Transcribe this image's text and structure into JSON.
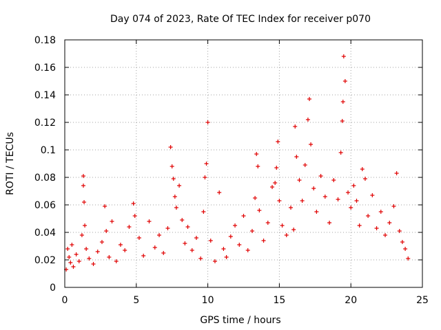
{
  "chart_data": {
    "type": "scatter",
    "title": "Day 074 of 2023, Rate Of TEC Index for receiver p070",
    "xlabel": "GPS time / hours",
    "ylabel": "ROTI / TECUs",
    "xlim": [
      0,
      25
    ],
    "ylim": [
      0,
      0.18
    ],
    "xticks": [
      "0",
      "5",
      "10",
      "15",
      "20",
      "25"
    ],
    "yticks": [
      "0",
      "0.02",
      "0.04",
      "0.06",
      "0.08",
      "0.1",
      "0.12",
      "0.14",
      "0.16",
      "0.18"
    ],
    "grid": true,
    "marker_color": "#e00000",
    "series": [
      {
        "x": [
          0.1,
          0.2,
          0.3,
          0.4,
          0.5,
          0.6,
          0.8,
          1.0,
          1.2,
          1.3,
          1.3,
          1.35,
          1.4,
          1.5,
          1.7,
          2.0,
          2.3,
          2.6,
          2.8,
          2.9,
          3.1,
          3.3,
          3.6,
          3.9,
          4.2,
          4.5,
          4.8,
          4.9,
          5.2,
          5.5,
          5.9,
          6.3,
          6.6,
          6.9,
          7.2,
          7.4,
          7.5,
          7.6,
          7.7,
          7.8,
          8.0,
          8.2,
          8.4,
          8.6,
          8.9,
          9.2,
          9.5,
          9.7,
          9.8,
          9.9,
          10.0,
          10.2,
          10.5,
          10.8,
          11.1,
          11.3,
          11.6,
          11.9,
          12.2,
          12.5,
          12.8,
          13.1,
          13.3,
          13.4,
          13.5,
          13.6,
          13.9,
          14.2,
          14.5,
          14.7,
          14.8,
          14.9,
          15.0,
          15.2,
          15.5,
          15.8,
          16.0,
          16.1,
          16.2,
          16.4,
          16.6,
          16.8,
          17.0,
          17.1,
          17.2,
          17.4,
          17.6,
          17.9,
          18.2,
          18.5,
          18.8,
          19.1,
          19.3,
          19.4,
          19.45,
          19.5,
          19.6,
          19.8,
          20.0,
          20.2,
          20.4,
          20.6,
          20.8,
          21.0,
          21.2,
          21.5,
          21.8,
          22.1,
          22.4,
          22.7,
          23.0,
          23.2,
          23.4,
          23.6,
          23.8,
          24.0
        ],
        "y": [
          0.013,
          0.028,
          0.022,
          0.018,
          0.031,
          0.015,
          0.024,
          0.019,
          0.038,
          0.081,
          0.074,
          0.062,
          0.045,
          0.028,
          0.021,
          0.017,
          0.026,
          0.033,
          0.059,
          0.041,
          0.022,
          0.048,
          0.019,
          0.031,
          0.027,
          0.044,
          0.061,
          0.052,
          0.036,
          0.023,
          0.048,
          0.029,
          0.038,
          0.025,
          0.043,
          0.102,
          0.088,
          0.079,
          0.066,
          0.058,
          0.074,
          0.049,
          0.032,
          0.044,
          0.027,
          0.036,
          0.021,
          0.055,
          0.08,
          0.09,
          0.12,
          0.034,
          0.019,
          0.069,
          0.028,
          0.022,
          0.037,
          0.045,
          0.031,
          0.052,
          0.027,
          0.041,
          0.065,
          0.097,
          0.088,
          0.056,
          0.034,
          0.047,
          0.073,
          0.076,
          0.087,
          0.106,
          0.063,
          0.045,
          0.038,
          0.058,
          0.042,
          0.117,
          0.095,
          0.078,
          0.063,
          0.089,
          0.122,
          0.137,
          0.104,
          0.072,
          0.055,
          0.081,
          0.066,
          0.047,
          0.078,
          0.064,
          0.098,
          0.121,
          0.135,
          0.168,
          0.15,
          0.069,
          0.058,
          0.074,
          0.063,
          0.045,
          0.086,
          0.079,
          0.052,
          0.067,
          0.043,
          0.055,
          0.038,
          0.047,
          0.059,
          0.083,
          0.041,
          0.033,
          0.028,
          0.021
        ]
      }
    ]
  }
}
